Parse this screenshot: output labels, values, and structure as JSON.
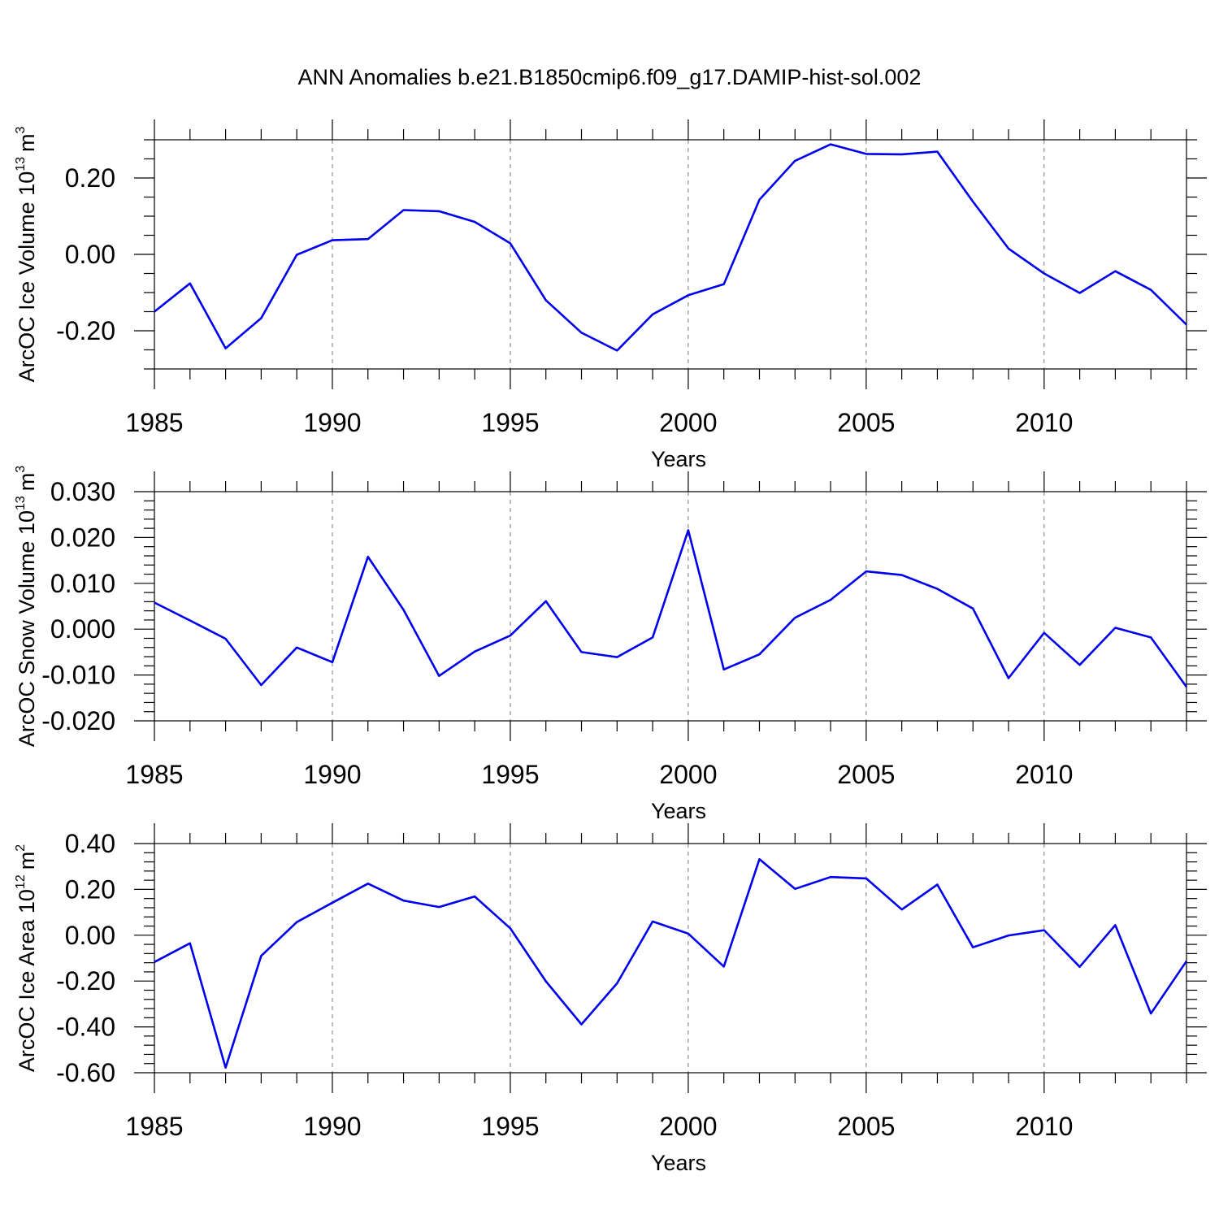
{
  "title": "ANN Anomalies b.e21.B1850cmip6.f09_g17.DAMIP-hist-sol.002",
  "colors": {
    "line": "#0000ee",
    "grid": "#777777",
    "axis": "#000000"
  },
  "chart_data": [
    {
      "type": "line",
      "name": "ice-volume",
      "ylabel": "ArcOC Ice Volume 10",
      "ylabel_exp": "13",
      "ylabel_unit": "m",
      "ylabel_unit_exp": "3",
      "xlabel": "Years",
      "xlim": [
        1985,
        2014
      ],
      "ylim": [
        -0.3,
        0.3
      ],
      "x_ticks": [
        1985,
        1990,
        1995,
        2000,
        2005,
        2010
      ],
      "x_tick_labels": [
        "1985",
        "1990",
        "1995",
        "2000",
        "2005",
        "2010"
      ],
      "y_ticks": [
        -0.2,
        0.0,
        0.2
      ],
      "y_tick_labels": [
        "-0.20",
        "0.00",
        "0.20"
      ],
      "y_minor_step": 0.05,
      "grid_x": [
        1990,
        1995,
        2000,
        2005,
        2010
      ],
      "x": [
        1985,
        1986,
        1987,
        1988,
        1989,
        1990,
        1991,
        1992,
        1993,
        1994,
        1995,
        1996,
        1997,
        1998,
        1999,
        2000,
        2001,
        2002,
        2003,
        2004,
        2005,
        2006,
        2007,
        2008,
        2009,
        2010,
        2011,
        2012,
        2013,
        2014
      ],
      "values": [
        -0.15,
        -0.076,
        -0.246,
        -0.167,
        -0.001,
        0.037,
        0.04,
        0.116,
        0.113,
        0.085,
        0.029,
        -0.12,
        -0.205,
        -0.252,
        -0.157,
        -0.107,
        -0.078,
        0.143,
        0.245,
        0.288,
        0.263,
        0.262,
        0.269,
        0.138,
        0.015,
        -0.05,
        -0.101,
        -0.044,
        -0.093,
        -0.184
      ]
    },
    {
      "type": "line",
      "name": "snow-volume",
      "ylabel": "ArcOC Snow Volume 10",
      "ylabel_exp": "13",
      "ylabel_unit": "m",
      "ylabel_unit_exp": "3",
      "xlabel": "Years",
      "xlim": [
        1985,
        2014
      ],
      "ylim": [
        -0.02,
        0.03
      ],
      "x_ticks": [
        1985,
        1990,
        1995,
        2000,
        2005,
        2010
      ],
      "x_tick_labels": [
        "1985",
        "1990",
        "1995",
        "2000",
        "2005",
        "2010"
      ],
      "y_ticks": [
        -0.02,
        -0.01,
        0.0,
        0.01,
        0.02,
        0.03
      ],
      "y_tick_labels": [
        "-0.020",
        "-0.010",
        "0.000",
        "0.010",
        "0.020",
        "0.030"
      ],
      "y_minor_step": 0.002,
      "grid_x": [
        1990,
        1995,
        2000,
        2005,
        2010
      ],
      "x": [
        1985,
        1986,
        1987,
        1988,
        1989,
        1990,
        1991,
        1992,
        1993,
        1994,
        1995,
        1996,
        1997,
        1998,
        1999,
        2000,
        2001,
        2002,
        2003,
        2004,
        2005,
        2006,
        2007,
        2008,
        2009,
        2010,
        2011,
        2012,
        2013,
        2014
      ],
      "values": [
        0.0058,
        0.0019,
        -0.0021,
        -0.0122,
        -0.004,
        -0.0072,
        0.0158,
        0.0042,
        -0.0102,
        -0.0049,
        -0.0014,
        0.0061,
        -0.005,
        -0.0061,
        -0.0018,
        0.0216,
        -0.0088,
        -0.0055,
        0.0025,
        0.0064,
        0.0126,
        0.0118,
        0.0088,
        0.0045,
        -0.0107,
        -0.0008,
        -0.0078,
        0.0003,
        -0.0018,
        -0.0126
      ]
    },
    {
      "type": "line",
      "name": "ice-area",
      "ylabel": "ArcOC Ice Area 10",
      "ylabel_exp": "12",
      "ylabel_unit": "m",
      "ylabel_unit_exp": "2",
      "xlabel": "Years",
      "xlim": [
        1985,
        2014
      ],
      "ylim": [
        -0.6,
        0.4
      ],
      "x_ticks": [
        1985,
        1990,
        1995,
        2000,
        2005,
        2010
      ],
      "x_tick_labels": [
        "1985",
        "1990",
        "1995",
        "2000",
        "2005",
        "2010"
      ],
      "y_ticks": [
        -0.6,
        -0.4,
        -0.2,
        0.0,
        0.2,
        0.4
      ],
      "y_tick_labels": [
        "-0.60",
        "-0.40",
        "-0.20",
        "0.00",
        "0.20",
        "0.40"
      ],
      "y_minor_step": 0.04,
      "grid_x": [
        1990,
        1995,
        2000,
        2005,
        2010
      ],
      "x": [
        1985,
        1986,
        1987,
        1988,
        1989,
        1990,
        1991,
        1992,
        1993,
        1994,
        1995,
        1996,
        1997,
        1998,
        1999,
        2000,
        2001,
        2002,
        2003,
        2004,
        2005,
        2006,
        2007,
        2008,
        2009,
        2010,
        2011,
        2012,
        2013,
        2014
      ],
      "values": [
        -0.117,
        -0.035,
        -0.578,
        -0.09,
        0.057,
        0.142,
        0.225,
        0.151,
        0.123,
        0.169,
        0.03,
        -0.201,
        -0.389,
        -0.21,
        0.06,
        0.007,
        -0.137,
        0.332,
        0.202,
        0.254,
        0.248,
        0.112,
        0.221,
        -0.053,
        -0.001,
        0.022,
        -0.138,
        0.044,
        -0.342,
        -0.113
      ]
    }
  ]
}
